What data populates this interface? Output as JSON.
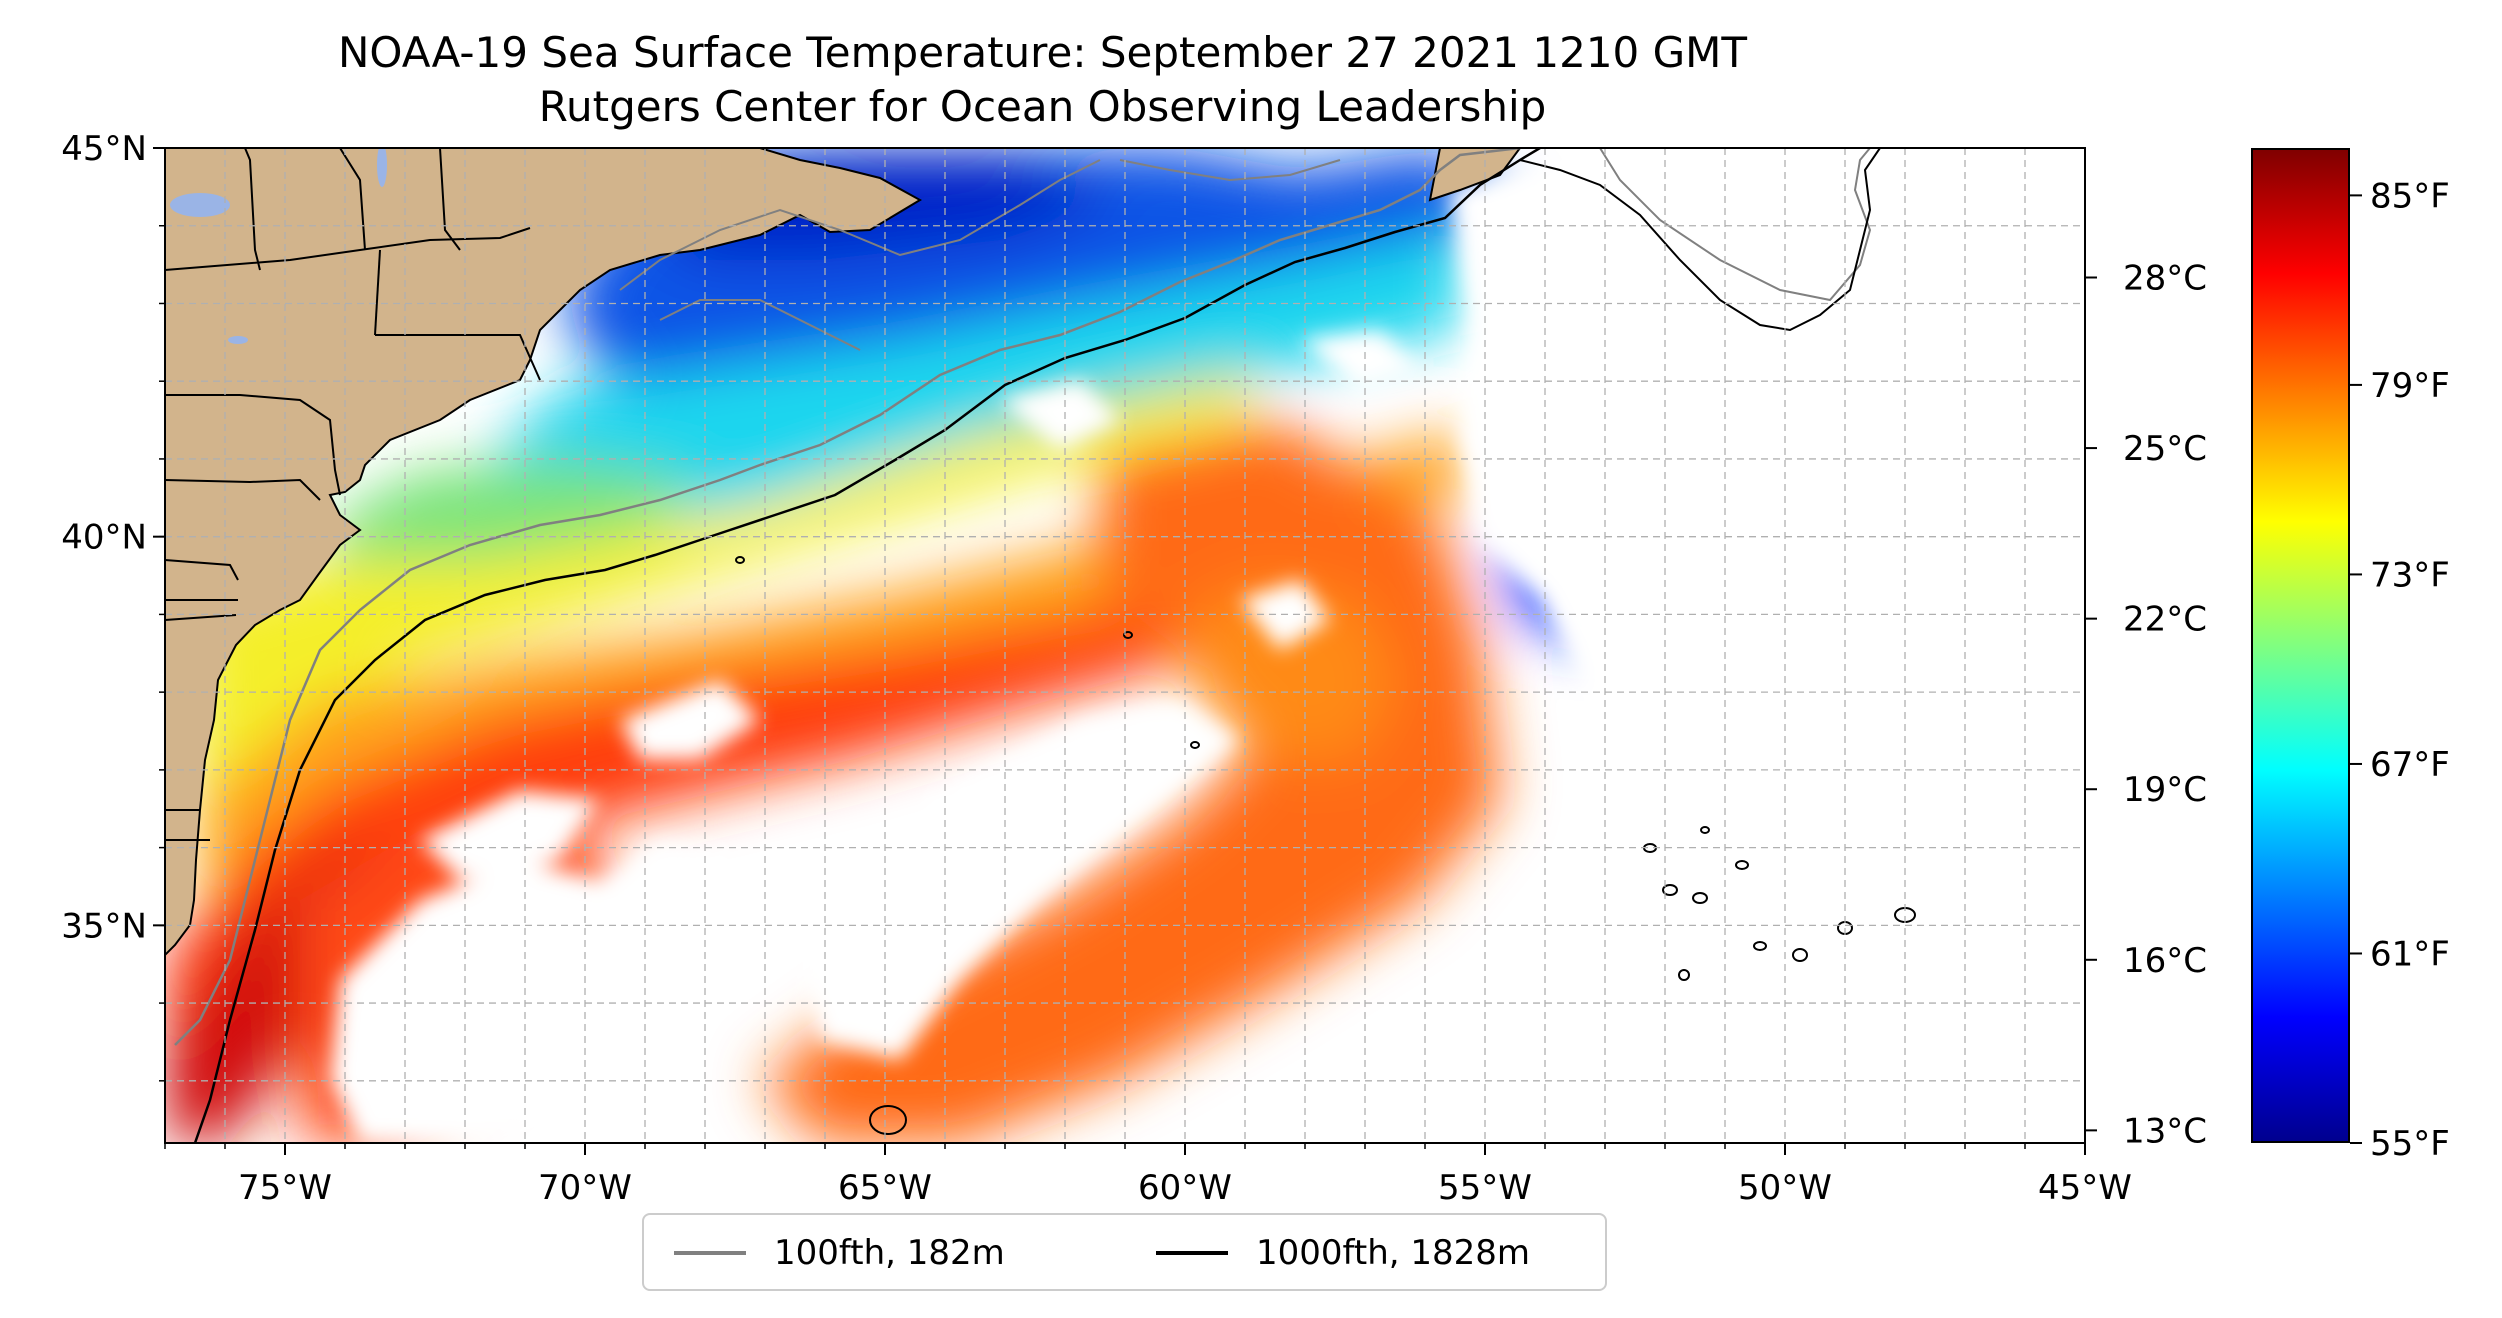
{
  "title": {
    "line1": "NOAA-19 Sea Surface Temperature: September 27 2021 1210 GMT",
    "line2": "Rutgers Center for Ocean Observing Leadership"
  },
  "map": {
    "lon_range": [
      -77,
      -45
    ],
    "lat_range": [
      32.2,
      45
    ],
    "lon_ticks": [
      {
        "value": -75,
        "label": "75°W"
      },
      {
        "value": -70,
        "label": "70°W"
      },
      {
        "value": -65,
        "label": "65°W"
      },
      {
        "value": -60,
        "label": "60°W"
      },
      {
        "value": -55,
        "label": "55°W"
      },
      {
        "value": -50,
        "label": "50°W"
      },
      {
        "value": -45,
        "label": "45°W"
      }
    ],
    "lat_ticks": [
      {
        "value": 45,
        "label": "45°N"
      },
      {
        "value": 40,
        "label": "40°N"
      },
      {
        "value": 35,
        "label": "35°N"
      }
    ],
    "gridlines": "dashed",
    "grid_step_degrees": 1
  },
  "legend": {
    "placement": "below-map",
    "items": [
      {
        "label": "100fth, 182m",
        "color": "#808080"
      },
      {
        "label": "1000fth, 1828m",
        "color": "#000000"
      }
    ]
  },
  "colorbar": {
    "colormap": "jet",
    "range_f": [
      55,
      86.5
    ],
    "celsius_ticks": [
      {
        "value": 28,
        "label": "28°C"
      },
      {
        "value": 25,
        "label": "25°C"
      },
      {
        "value": 22,
        "label": "22°C"
      },
      {
        "value": 19,
        "label": "19°C"
      },
      {
        "value": 16,
        "label": "16°C"
      },
      {
        "value": 13,
        "label": "13°C"
      }
    ],
    "fahrenheit_ticks": [
      {
        "value": 85,
        "label": "85°F"
      },
      {
        "value": 79,
        "label": "79°F"
      },
      {
        "value": 73,
        "label": "73°F"
      },
      {
        "value": 67,
        "label": "67°F"
      },
      {
        "value": 61,
        "label": "61°F"
      },
      {
        "value": 55,
        "label": "55°F"
      }
    ]
  },
  "colors": {
    "land": "#d2b48c",
    "lakes": "#9ab4e6",
    "no_data": "#ffffff",
    "gridline": "#b0b0b0"
  }
}
